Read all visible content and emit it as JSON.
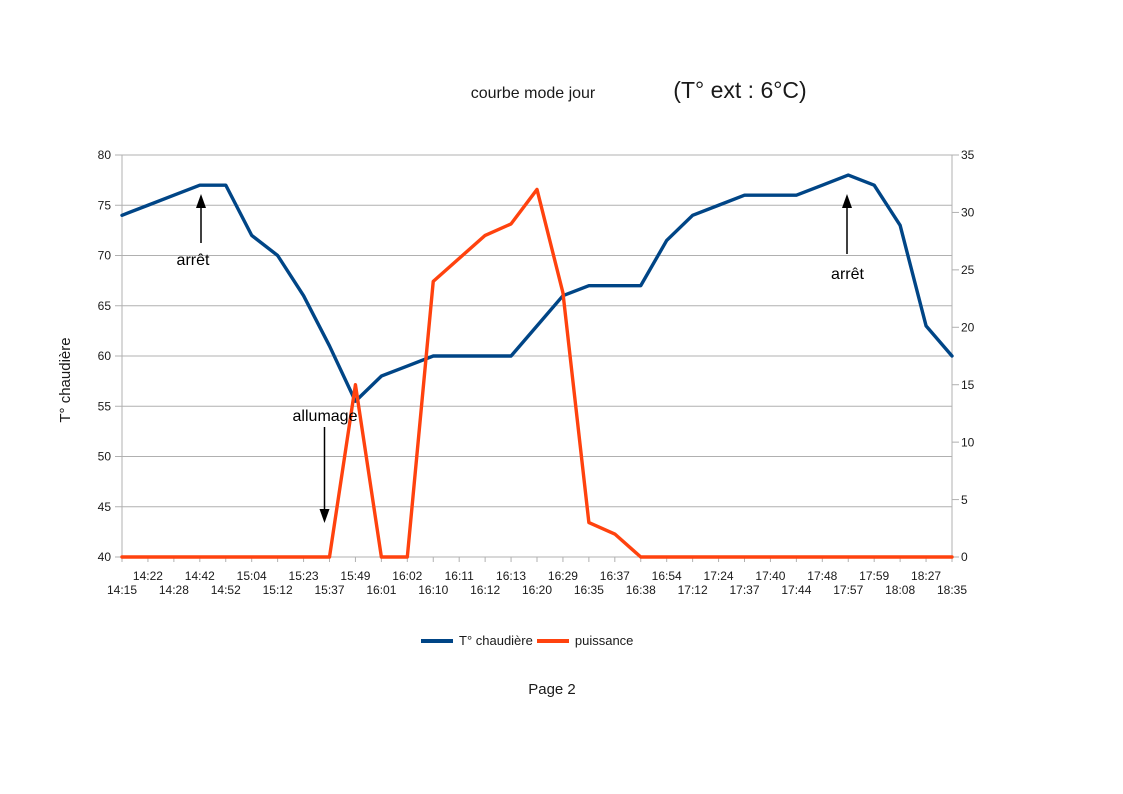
{
  "titles": {
    "main": "courbe mode jour",
    "ext": "(T° ext : 6°C)"
  },
  "page_label": "Page 2",
  "colors": {
    "grid": "#b0b0b0",
    "axis": "#b0b0b0",
    "arrow": "#000000"
  },
  "chart_data": {
    "type": "line",
    "title": "courbe mode jour",
    "subtitle": "(T° ext : 6°C)",
    "grid": "horizontal",
    "legend_position": "bottom",
    "categories": [
      "14:15",
      "14:22",
      "14:28",
      "14:42",
      "14:52",
      "15:04",
      "15:12",
      "15:23",
      "15:37",
      "15:49",
      "16:01",
      "16:02",
      "16:10",
      "16:11",
      "16:12",
      "16:13",
      "16:20",
      "16:29",
      "16:35",
      "16:37",
      "16:38",
      "16:54",
      "17:12",
      "17:24",
      "17:37",
      "17:40",
      "17:44",
      "17:48",
      "17:57",
      "17:59",
      "18:08",
      "18:27",
      "18:35"
    ],
    "series": [
      {
        "name": "T° chaudière",
        "axis": "left",
        "color": "#004586",
        "values": [
          74,
          75,
          76,
          77,
          77,
          72,
          70,
          66,
          61,
          55.5,
          58,
          59,
          60,
          60,
          60,
          60,
          63,
          66,
          67,
          67,
          67,
          71.5,
          74,
          75,
          76,
          76,
          76,
          77,
          78,
          77,
          73,
          63,
          60
        ]
      },
      {
        "name": "puissance",
        "axis": "right",
        "color": "#FF420E",
        "values": [
          0,
          0,
          0,
          0,
          0,
          0,
          0,
          0,
          0,
          15,
          0,
          0,
          24,
          26,
          28,
          29,
          32,
          23,
          3,
          2,
          0,
          0,
          0,
          0,
          0,
          0,
          0,
          0,
          0,
          0,
          0,
          0,
          0
        ]
      }
    ],
    "left_axis": {
      "title": "T° chaudière",
      "min": 40,
      "max": 80,
      "step": 5,
      "labels": [
        40,
        45,
        50,
        55,
        60,
        65,
        70,
        75,
        80
      ]
    },
    "right_axis": {
      "min": 0,
      "max": 35,
      "step": 5,
      "labels": [
        0,
        5,
        10,
        15,
        20,
        25,
        30,
        35
      ]
    },
    "annotations": [
      {
        "label": "arrêt",
        "text_x": 193,
        "text_baseline_y": 265,
        "arrow_x": 201,
        "arrow_tail_y": 243,
        "arrow_tip_y": 194,
        "direction": "up"
      },
      {
        "label": "allumage",
        "text_x": 325,
        "text_baseline_y": 421,
        "arrow_x": 324.5,
        "arrow_tail_y": 427,
        "arrow_tip_y": 523,
        "direction": "down"
      },
      {
        "label": "arrêt",
        "text_x": 847.5,
        "text_baseline_y": 279,
        "arrow_x": 847,
        "arrow_tail_y": 254,
        "arrow_tip_y": 194,
        "direction": "up"
      }
    ]
  }
}
